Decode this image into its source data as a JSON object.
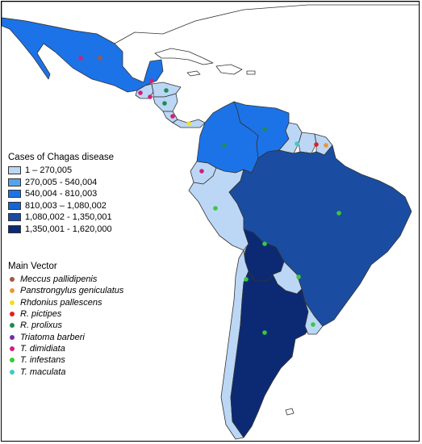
{
  "legend": {
    "cases_title": "Cases of Chagas disease",
    "cases": [
      {
        "label": "1 – 270,005",
        "color": "#bcd7f5"
      },
      {
        "label": "270,005 - 540,004",
        "color": "#55a5ec"
      },
      {
        "label": "540,004 - 810,003",
        "color": "#1c73e8"
      },
      {
        "label": "810,003 – 1,080,002",
        "color": "#1565d7"
      },
      {
        "label": "1,080,002 - 1,350,001",
        "color": "#1a4da1"
      },
      {
        "label": "1,350,001 - 1,620,000",
        "color": "#0c2a73"
      }
    ],
    "vector_title": "Main Vector",
    "vectors": [
      {
        "label": "Meccus pallidipenis",
        "color": "#a05a3c"
      },
      {
        "label": "Panstrongylus geniculatus",
        "color": "#e8963c"
      },
      {
        "label": "Rhdonius pallescens",
        "color": "#f0e020"
      },
      {
        "label": "R. pictipes",
        "color": "#e02020"
      },
      {
        "label": "R. prolixus",
        "color": "#1f8c50"
      },
      {
        "label": "Triatoma barberi",
        "color": "#7030a0"
      },
      {
        "label": "T. dimidiata",
        "color": "#d0207a"
      },
      {
        "label": "T. infestans",
        "color": "#3ac83a"
      },
      {
        "label": "T. maculata",
        "color": "#40c8c8"
      }
    ]
  },
  "map_regions": [
    {
      "name": "USA",
      "color": "#ffffff"
    },
    {
      "name": "Mexico",
      "color": "#1c73e8"
    },
    {
      "name": "Guatemala",
      "color": "#bcd7f5"
    },
    {
      "name": "Honduras",
      "color": "#bcd7f5"
    },
    {
      "name": "Nicaragua",
      "color": "#bcd7f5"
    },
    {
      "name": "Costa Rica",
      "color": "#bcd7f5"
    },
    {
      "name": "Panama",
      "color": "#bcd7f5"
    },
    {
      "name": "Colombia",
      "color": "#1c73e8"
    },
    {
      "name": "Venezuela",
      "color": "#1c73e8"
    },
    {
      "name": "Guyana",
      "color": "#bcd7f5"
    },
    {
      "name": "Suriname",
      "color": "#bcd7f5"
    },
    {
      "name": "French Guiana",
      "color": "#bcd7f5"
    },
    {
      "name": "Ecuador",
      "color": "#bcd7f5"
    },
    {
      "name": "Peru",
      "color": "#bcd7f5"
    },
    {
      "name": "Brazil",
      "color": "#1a4da1"
    },
    {
      "name": "Bolivia",
      "color": "#0c2a73"
    },
    {
      "name": "Paraguay",
      "color": "#bcd7f5"
    },
    {
      "name": "Chile",
      "color": "#bcd7f5"
    },
    {
      "name": "Argentina",
      "color": "#0c2a73"
    },
    {
      "name": "Uruguay",
      "color": "#bcd7f5"
    }
  ],
  "vector_markers": [
    {
      "region": "Mexico",
      "vector": "T. dimidiata"
    },
    {
      "region": "Mexico",
      "vector": "Meccus pallidipenis"
    },
    {
      "region": "Belize",
      "vector": "T. dimidiata"
    },
    {
      "region": "Guatemala",
      "vector": "T. dimidiata"
    },
    {
      "region": "Honduras",
      "vector": "R. prolixus"
    },
    {
      "region": "El Salvador",
      "vector": "T. dimidiata"
    },
    {
      "region": "Nicaragua",
      "vector": "R. prolixus"
    },
    {
      "region": "Costa Rica",
      "vector": "T. dimidiata"
    },
    {
      "region": "Panama",
      "vector": "Rhdonius pallescens"
    },
    {
      "region": "Colombia",
      "vector": "R. prolixus"
    },
    {
      "region": "Venezuela",
      "vector": "R. prolixus"
    },
    {
      "region": "Guyana",
      "vector": "T. maculata"
    },
    {
      "region": "Suriname",
      "vector": "R. pictipes"
    },
    {
      "region": "French Guiana",
      "vector": "Panstrongylus geniculatus"
    },
    {
      "region": "Ecuador",
      "vector": "T. dimidiata"
    },
    {
      "region": "Peru",
      "vector": "T. infestans"
    },
    {
      "region": "Brazil",
      "vector": "T. infestans"
    },
    {
      "region": "Bolivia",
      "vector": "T. infestans"
    },
    {
      "region": "Chile",
      "vector": "T. infestans"
    },
    {
      "region": "Paraguay",
      "vector": "T. infestans"
    },
    {
      "region": "Argentina",
      "vector": "T. infestans"
    },
    {
      "region": "Uruguay",
      "vector": "T. infestans"
    }
  ]
}
